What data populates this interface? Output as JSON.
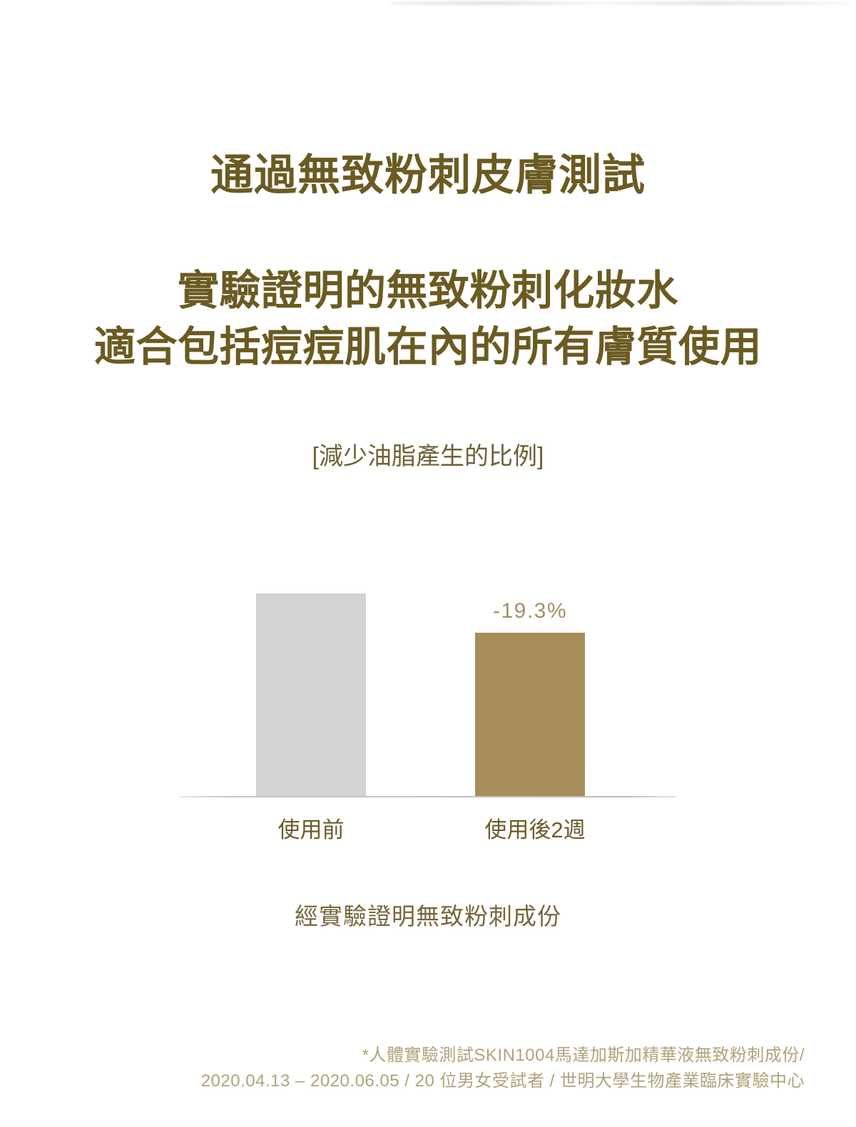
{
  "page": {
    "main_title": "通過無致粉刺皮膚測試",
    "subtitle_line1": "實驗證明的無致粉刺化妝水",
    "subtitle_line2": "適合包括痘痘肌在內的所有膚質使用",
    "caption": "經實驗證明無致粉刺成份",
    "footnote_line1": "*人體實驗測試SKIN1004馬達加斯加精華液無致粉刺成份/",
    "footnote_line2": "2020.04.13 – 2020.06.05 / 20 位男女受試者 / 世明大學生物產業臨床實驗中心"
  },
  "colors": {
    "title_text": "#6b5b21",
    "chart_heading_text": "#6f6135",
    "axis_label_text": "#6b5c2a",
    "value_label_text": "#a39166",
    "caption_text": "#76673c",
    "footnote_text": "#b2a27b",
    "axis_line": "#c5c5c5"
  },
  "chart_data": {
    "type": "bar",
    "title": "[減少油脂產生的比例]",
    "categories": [
      "使用前",
      "使用後2週"
    ],
    "values": [
      100,
      80.7
    ],
    "value_labels": [
      "",
      "-19.3%"
    ],
    "bar_colors": [
      "#d3d3d3",
      "#a78e5b"
    ],
    "ylim": [
      0,
      100
    ],
    "grid": false,
    "legend": false,
    "annotation": "-19.3%",
    "xlabel": "",
    "ylabel": ""
  }
}
